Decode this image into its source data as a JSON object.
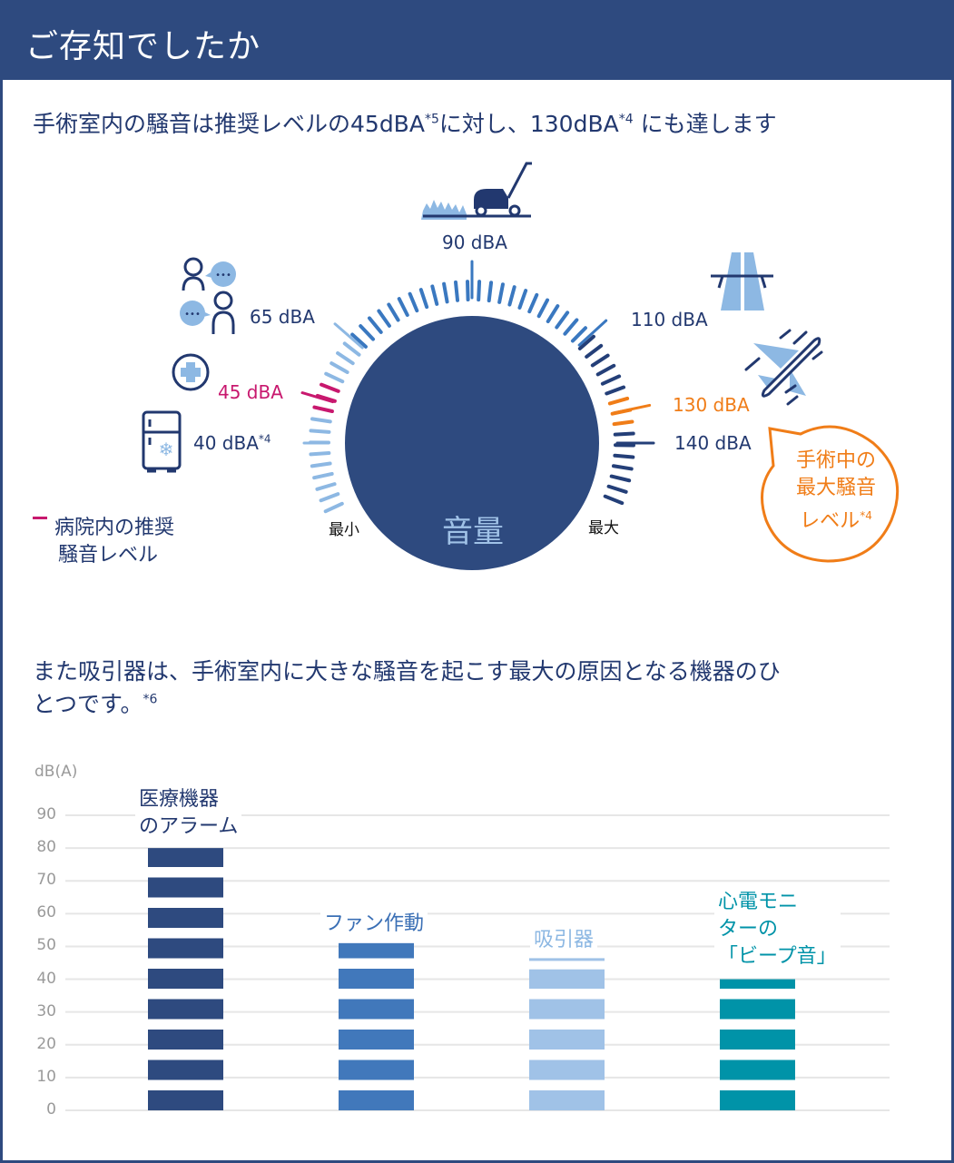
{
  "header": {
    "title": "ご存知でしたか"
  },
  "section1": {
    "heading_a": "手術室内の騒音は推奨レベルの45dBA",
    "heading_sup1": "*5",
    "heading_b": "に対し、130dBA",
    "heading_sup2": "*4",
    "heading_c": " にも達します"
  },
  "gauge": {
    "center_label": "音量",
    "min_label": "最小",
    "max_label": "最大",
    "levels": [
      {
        "label": "40 dBA",
        "sup": "*4",
        "icon": "refrigerator-icon",
        "color": "#8db8e3"
      },
      {
        "label": "45 dBA",
        "sup": "",
        "icon": "hospital-cross-icon",
        "color": "#c8186e"
      },
      {
        "label": "65 dBA",
        "sup": "",
        "icon": "conversation-icon",
        "color": "#8db8e3"
      },
      {
        "label": "90 dBA",
        "sup": "",
        "icon": "lawn-mower-icon",
        "color": "#3a78c0"
      },
      {
        "label": "110 dBA",
        "sup": "",
        "icon": "highway-icon",
        "color": "#3a78c0"
      },
      {
        "label": "130 dBA",
        "sup": "",
        "icon": "airplane-icon",
        "color": "#f07d18"
      },
      {
        "label": "140 dBA",
        "sup": "",
        "icon": "",
        "color": "#243f78"
      }
    ],
    "legend": {
      "line1": "病院内の推奨",
      "line2": "騒音レベル",
      "color": "#c8186e"
    },
    "callout": {
      "line1": "手術中の",
      "line2": "最大騒音",
      "line3": "レベル",
      "sup": "*4",
      "color": "#f07d18"
    },
    "colors": {
      "low": "#8db8e3",
      "mid": "#3a78c0",
      "high": "#243f78",
      "dial": "#2e4a7f"
    }
  },
  "section2": {
    "heading_line1": "また吸引器は、手術室内に大きな騒音を起こす最大の原因となる機器のひ",
    "heading_line2": "とつです。",
    "heading_sup": "*6"
  },
  "chart_data": {
    "type": "bar",
    "title": "",
    "ylabel": "dB(A)",
    "xlabel": "",
    "ylim": [
      0,
      90
    ],
    "yticks": [
      "0",
      "10",
      "20",
      "30",
      "40",
      "50",
      "60",
      "70",
      "80",
      "90"
    ],
    "grid": true,
    "categories": [
      "医療機器のアラーム",
      "ファン作動",
      "吸引器",
      "心電モニターの「ビープ音」"
    ],
    "label_lines": [
      [
        "医療機器",
        "のアラーム"
      ],
      [
        "ファン作動"
      ],
      [
        "吸引器"
      ],
      [
        "心電モニ",
        "ターの",
        "「ビープ音」"
      ]
    ],
    "values": [
      80,
      51,
      46,
      40
    ],
    "colors": [
      "#2e4a7f",
      "#4178bb",
      "#a0c2e7",
      "#0093a8"
    ]
  }
}
